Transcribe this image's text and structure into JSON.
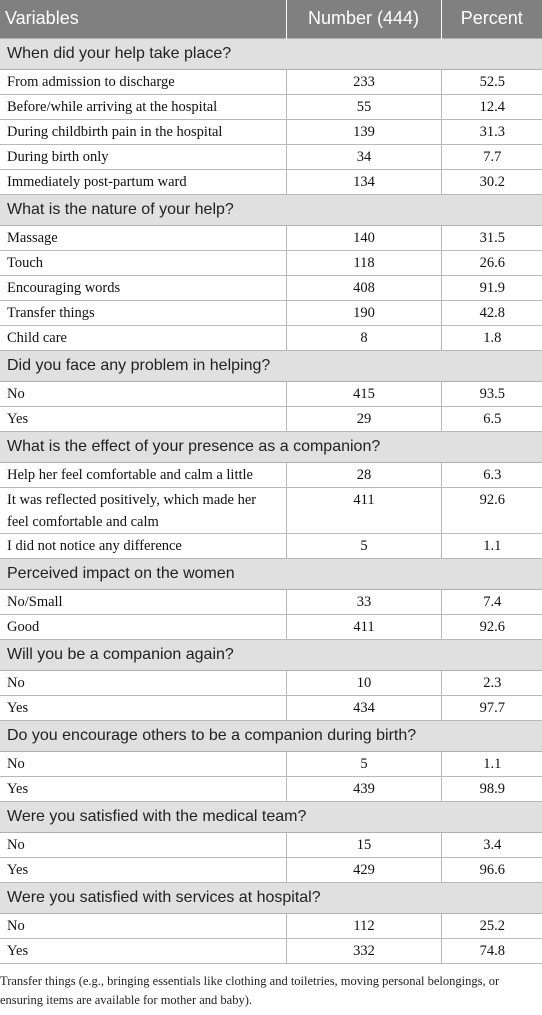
{
  "header": {
    "col_variables": "Variables",
    "col_number": "Number (444)",
    "col_percent": "Percent"
  },
  "sections": [
    {
      "title": "When did your help take place?",
      "rows": [
        {
          "label": "From admission to discharge",
          "number": "233",
          "percent": "52.5"
        },
        {
          "label": "Before/while arriving at the hospital",
          "number": "55",
          "percent": "12.4"
        },
        {
          "label": "During childbirth pain in the hospital",
          "number": "139",
          "percent": "31.3"
        },
        {
          "label": "During birth only",
          "number": "34",
          "percent": "7.7"
        },
        {
          "label": "Immediately post-partum ward",
          "number": "134",
          "percent": "30.2"
        }
      ]
    },
    {
      "title": "What is the nature of your help?",
      "rows": [
        {
          "label": "Massage",
          "number": "140",
          "percent": "31.5"
        },
        {
          "label": "Touch",
          "number": "118",
          "percent": "26.6"
        },
        {
          "label": "Encouraging words",
          "number": "408",
          "percent": "91.9"
        },
        {
          "label": "Transfer things",
          "number": "190",
          "percent": "42.8"
        },
        {
          "label": "Child care",
          "number": "8",
          "percent": "1.8"
        }
      ]
    },
    {
      "title": "Did you face any problem in helping?",
      "rows": [
        {
          "label": "No",
          "number": "415",
          "percent": "93.5"
        },
        {
          "label": "Yes",
          "number": "29",
          "percent": "6.5"
        }
      ]
    },
    {
      "title": "What is the effect of your presence as a companion?",
      "rows": [
        {
          "label": "Help her feel comfortable and calm a little",
          "number": "28",
          "percent": "6.3"
        },
        {
          "label": "It was reflected positively, which made her feel comfortable and calm",
          "number": "411",
          "percent": "92.6"
        },
        {
          "label": "I did not notice any difference",
          "number": "5",
          "percent": "1.1"
        }
      ]
    },
    {
      "title": "Perceived impact on the women",
      "rows": [
        {
          "label": "No/Small",
          "number": "33",
          "percent": "7.4"
        },
        {
          "label": "Good",
          "number": "411",
          "percent": "92.6"
        }
      ]
    },
    {
      "title": "Will you be a companion again?",
      "rows": [
        {
          "label": "No",
          "number": "10",
          "percent": "2.3"
        },
        {
          "label": "Yes",
          "number": "434",
          "percent": "97.7"
        }
      ]
    },
    {
      "title": "Do you encourage others to be a companion during birth?",
      "rows": [
        {
          "label": "No",
          "number": "5",
          "percent": "1.1"
        },
        {
          "label": "Yes",
          "number": "439",
          "percent": "98.9"
        }
      ]
    },
    {
      "title": "Were you satisfied with the medical team?",
      "rows": [
        {
          "label": "No",
          "number": "15",
          "percent": "3.4"
        },
        {
          "label": "Yes",
          "number": "429",
          "percent": "96.6"
        }
      ]
    },
    {
      "title": "Were you satisfied with services at hospital?",
      "rows": [
        {
          "label": "No",
          "number": "112",
          "percent": "25.2"
        },
        {
          "label": "Yes",
          "number": "332",
          "percent": "74.8"
        }
      ]
    }
  ],
  "footnote": "Transfer things (e.g., bringing essentials like clothing and toiletries, moving personal belongings, or ensuring items are available for mother and baby)."
}
